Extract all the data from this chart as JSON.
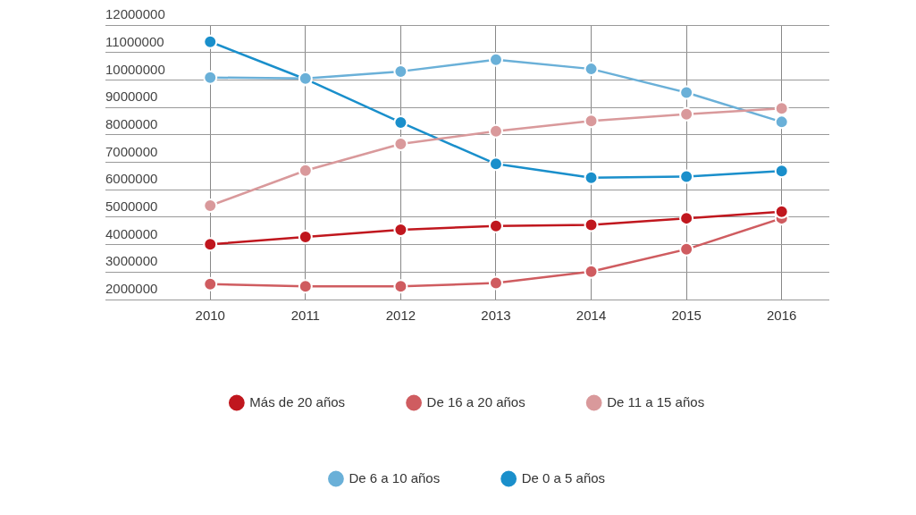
{
  "chart_data": {
    "type": "line",
    "categories": [
      "2010",
      "2011",
      "2012",
      "2013",
      "2014",
      "2015",
      "2016"
    ],
    "series": [
      {
        "name": "Más de 20 años",
        "color": "#c0171e",
        "values": [
          4010000,
          4280000,
          4540000,
          4680000,
          4720000,
          4960000,
          5200000
        ]
      },
      {
        "name": "De 16 a 20 años",
        "color": "#cf5c60",
        "values": [
          2560000,
          2480000,
          2480000,
          2600000,
          3020000,
          3830000,
          4960000
        ]
      },
      {
        "name": "De 11 a 15 años",
        "color": "#d9999b",
        "values": [
          5420000,
          6700000,
          7670000,
          8130000,
          8510000,
          8750000,
          8960000
        ]
      },
      {
        "name": "De 6 a 10 años",
        "color": "#6ab0d8",
        "values": [
          10090000,
          10050000,
          10310000,
          10740000,
          10400000,
          9540000,
          8470000
        ]
      },
      {
        "name": "De 0 a 5 años",
        "color": "#1a8fcb",
        "values": [
          11390000,
          10030000,
          8450000,
          6940000,
          6440000,
          6480000,
          6680000
        ]
      }
    ],
    "ylim": [
      2000000,
      12000000
    ],
    "yticks": [
      2000000,
      3000000,
      4000000,
      5000000,
      6000000,
      7000000,
      8000000,
      9000000,
      10000000,
      11000000,
      12000000
    ],
    "grid": true,
    "legend": "bottom",
    "marker": "circle",
    "line_style": "solid"
  }
}
